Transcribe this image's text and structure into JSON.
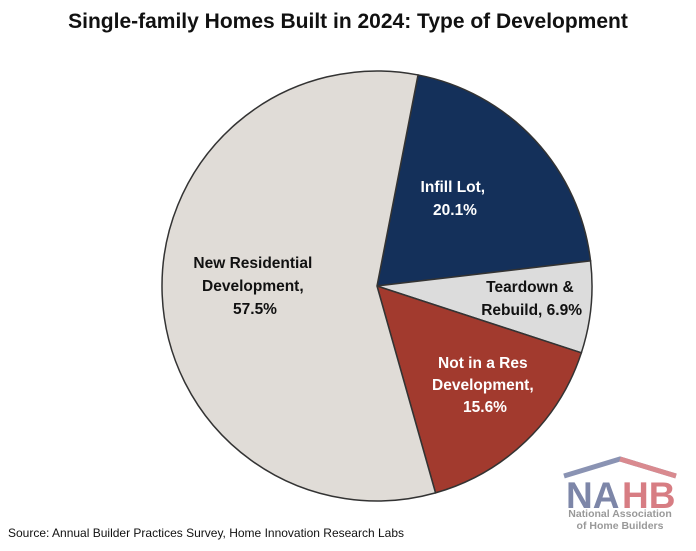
{
  "chart_data": {
    "type": "pie",
    "title": "Single-family Homes Built in 2024: Type of Development",
    "slices": [
      {
        "label": "Infill Lot,",
        "value_label": "20.1%",
        "value": 20.1,
        "color": "#14305a",
        "text_color": "#ffffff"
      },
      {
        "label": "Teardown &",
        "value_label": "Rebuild, 6.9%",
        "value": 6.9,
        "color": "#dcdcdc",
        "text_color": "#111111"
      },
      {
        "label": "Not in a Res",
        "label2": "Development,",
        "value_label": "15.6%",
        "value": 15.6,
        "color": "#a23a2e",
        "text_color": "#ffffff"
      },
      {
        "label": "New Residential",
        "label2": "Development,",
        "value_label": "57.5%",
        "value": 57.5,
        "color": "#e0dcd7",
        "text_color": "#111111"
      }
    ]
  },
  "source": "Source: Annual Builder Practices Survey, Home Innovation Research Labs",
  "logo": {
    "mark": "NAHB",
    "line1": "National Association",
    "line2": "of Home Builders"
  }
}
